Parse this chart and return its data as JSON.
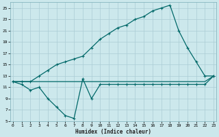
{
  "xlabel": "Humidex (Indice chaleur)",
  "bg_color": "#cce8ec",
  "grid_color": "#aaccd4",
  "line_color": "#006868",
  "xlim": [
    0,
    23
  ],
  "ylim": [
    5,
    26
  ],
  "xticks": [
    0,
    1,
    2,
    3,
    4,
    5,
    6,
    7,
    8,
    9,
    10,
    11,
    12,
    13,
    14,
    15,
    16,
    17,
    18,
    19,
    20,
    21,
    22,
    23
  ],
  "yticks": [
    5,
    7,
    9,
    11,
    13,
    15,
    17,
    19,
    21,
    23,
    25
  ],
  "line1_x": [
    0,
    1,
    2,
    3,
    4,
    5,
    6,
    7,
    8,
    9,
    10,
    11,
    12,
    13,
    14,
    15,
    16,
    17,
    18,
    19,
    20,
    21,
    22,
    23
  ],
  "line1_y": [
    12,
    12,
    12,
    12,
    12,
    12,
    12,
    12,
    12,
    12,
    12,
    12,
    12,
    12,
    12,
    12,
    12,
    12,
    12,
    12,
    12,
    12,
    12,
    13
  ],
  "line2_x": [
    0,
    1,
    2,
    3,
    4,
    5,
    6,
    7,
    8,
    9,
    10,
    11,
    12,
    13,
    14,
    15,
    16,
    17,
    18,
    19,
    20,
    21,
    22,
    23
  ],
  "line2_y": [
    12,
    11.5,
    10.5,
    11,
    9,
    7.5,
    6,
    5.5,
    12.5,
    9,
    11.5,
    11.5,
    11.5,
    11.5,
    11.5,
    11.5,
    11.5,
    11.5,
    11.5,
    11.5,
    11.5,
    11.5,
    11.5,
    13
  ],
  "line3_x": [
    0,
    1,
    2,
    3,
    4,
    5,
    6,
    7,
    8,
    9,
    10,
    11,
    12,
    13,
    14,
    15,
    16,
    17,
    18,
    19,
    20,
    21,
    22,
    23
  ],
  "line3_y": [
    12,
    12,
    12,
    13,
    14,
    15,
    15.5,
    16,
    16.5,
    18,
    19.5,
    20.5,
    21.5,
    22,
    23,
    23.5,
    24.5,
    25,
    25.5,
    21,
    18,
    15.5,
    13,
    13
  ]
}
